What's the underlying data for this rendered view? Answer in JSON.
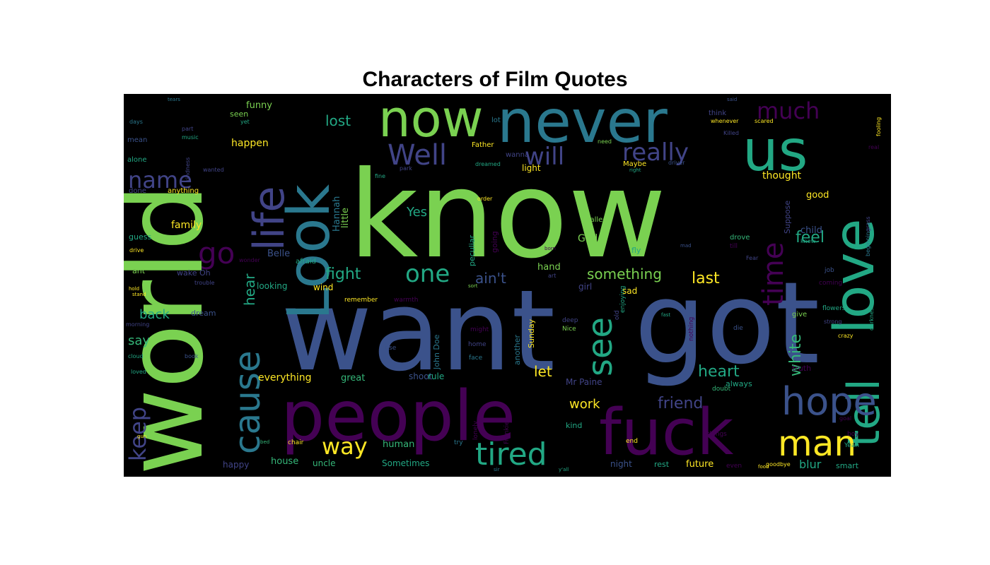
{
  "chart_data": {
    "type": "wordcloud",
    "title": "Characters of Film Quotes",
    "background": "#000000",
    "palette": [
      "#7ad151",
      "#2a788e",
      "#440154",
      "#3b528b",
      "#22a884",
      "#414487",
      "#fde725",
      "#35b779",
      "#1f9e89",
      "#482878"
    ],
    "words": [
      {
        "text": "know",
        "weight": 100
      },
      {
        "text": "want",
        "weight": 96
      },
      {
        "text": "got",
        "weight": 93
      },
      {
        "text": "world",
        "weight": 88
      },
      {
        "text": "people",
        "weight": 72
      },
      {
        "text": "never",
        "weight": 60
      },
      {
        "text": "fuck",
        "weight": 60
      },
      {
        "text": "Look",
        "weight": 58
      },
      {
        "text": "love",
        "weight": 56
      },
      {
        "text": "now",
        "weight": 54
      },
      {
        "text": "us",
        "weight": 52
      },
      {
        "text": "tell",
        "weight": 48
      },
      {
        "text": "life",
        "weight": 42
      },
      {
        "text": "hope",
        "weight": 40
      },
      {
        "text": "man",
        "weight": 40
      },
      {
        "text": "cause",
        "weight": 38
      },
      {
        "text": "tired",
        "weight": 36
      },
      {
        "text": "see",
        "weight": 34
      },
      {
        "text": "go",
        "weight": 32
      },
      {
        "text": "Well",
        "weight": 30
      },
      {
        "text": "time",
        "weight": 30
      },
      {
        "text": "will",
        "weight": 28
      },
      {
        "text": "really",
        "weight": 28
      },
      {
        "text": "much",
        "weight": 26
      },
      {
        "text": "name",
        "weight": 26
      },
      {
        "text": "one",
        "weight": 26
      },
      {
        "text": "way",
        "weight": 24
      },
      {
        "text": "keep",
        "weight": 22
      },
      {
        "text": "white",
        "weight": 20
      },
      {
        "text": "friend",
        "weight": 18
      },
      {
        "text": "heart",
        "weight": 18
      },
      {
        "text": "feel",
        "weight": 18
      },
      {
        "text": "fight",
        "weight": 16
      },
      {
        "text": "something",
        "weight": 16
      },
      {
        "text": "ain't",
        "weight": 16
      },
      {
        "text": "last",
        "weight": 16
      },
      {
        "text": "hear",
        "weight": 15
      },
      {
        "text": "lost",
        "weight": 15
      },
      {
        "text": "work",
        "weight": 14
      },
      {
        "text": "back",
        "weight": 14
      },
      {
        "text": "say",
        "weight": 14
      },
      {
        "text": "let",
        "weight": 14
      },
      {
        "text": "Yes",
        "weight": 13
      },
      {
        "text": "everything",
        "weight": 12
      },
      {
        "text": "blur",
        "weight": 12
      },
      {
        "text": "family",
        "weight": 11
      },
      {
        "text": "happen",
        "weight": 11
      },
      {
        "text": "funny",
        "weight": 10
      },
      {
        "text": "Hannah",
        "weight": 10
      },
      {
        "text": "little",
        "weight": 10
      },
      {
        "text": "thought",
        "weight": 10
      },
      {
        "text": "human",
        "weight": 10
      },
      {
        "text": "house",
        "weight": 10
      },
      {
        "text": "Belle",
        "weight": 9
      },
      {
        "text": "God",
        "weight": 9
      },
      {
        "text": "child",
        "weight": 9
      },
      {
        "text": "good",
        "weight": 9
      },
      {
        "text": "hand",
        "weight": 9
      },
      {
        "text": "future",
        "weight": 9
      },
      {
        "text": "Sometimes",
        "weight": 8
      },
      {
        "text": "great",
        "weight": 8
      },
      {
        "text": "light",
        "weight": 8
      },
      {
        "text": "happy",
        "weight": 8
      },
      {
        "text": "uncle",
        "weight": 8
      },
      {
        "text": "Mr Paine",
        "weight": 8
      },
      {
        "text": "looking",
        "weight": 8
      },
      {
        "text": "sad",
        "weight": 8
      },
      {
        "text": "girl",
        "weight": 8
      },
      {
        "text": "wind",
        "weight": 8
      },
      {
        "text": "night",
        "weight": 8
      },
      {
        "text": "rest",
        "weight": 8
      },
      {
        "text": "smart",
        "weight": 8
      },
      {
        "text": "kind",
        "weight": 7
      },
      {
        "text": "always",
        "weight": 7
      },
      {
        "text": "truth",
        "weight": 7
      },
      {
        "text": "shoot",
        "weight": 7
      },
      {
        "text": "rule",
        "weight": 7
      },
      {
        "text": "seen",
        "weight": 7
      },
      {
        "text": "dream",
        "weight": 7
      },
      {
        "text": "John Doe",
        "weight": 7
      },
      {
        "text": "Sunday",
        "weight": 7
      },
      {
        "text": "another",
        "weight": 7
      },
      {
        "text": "Suppose",
        "weight": 7
      },
      {
        "text": "fly",
        "weight": 7
      },
      {
        "text": "peculiar",
        "weight": 7
      },
      {
        "text": "going",
        "weight": 7
      },
      {
        "text": "wake Oh",
        "weight": 7
      },
      {
        "text": "Maybe",
        "weight": 6
      },
      {
        "text": "called",
        "weight": 6
      },
      {
        "text": "ant",
        "weight": 6
      },
      {
        "text": "guess",
        "weight": 6
      },
      {
        "text": "give",
        "weight": 6
      },
      {
        "text": "alone",
        "weight": 6
      },
      {
        "text": "mean",
        "weight": 6
      },
      {
        "text": "done",
        "weight": 6
      },
      {
        "text": "anything",
        "weight": 6
      },
      {
        "text": "Father",
        "weight": 6
      },
      {
        "text": "wanna",
        "weight": 6
      },
      {
        "text": "lot",
        "weight": 6
      },
      {
        "text": "think",
        "weight": 6
      },
      {
        "text": "afraid",
        "weight": 6
      },
      {
        "text": "drove",
        "weight": 6
      },
      {
        "text": "till",
        "weight": 6
      },
      {
        "text": "job",
        "weight": 6
      },
      {
        "text": "coming",
        "weight": 6
      },
      {
        "text": "flowers",
        "weight": 6
      },
      {
        "text": "deep",
        "weight": 6
      },
      {
        "text": "Nice",
        "weight": 6
      },
      {
        "text": "old",
        "weight": 6
      },
      {
        "text": "die",
        "weight": 6
      },
      {
        "text": "enjoying",
        "weight": 6
      },
      {
        "text": "nothing",
        "weight": 6
      },
      {
        "text": "face",
        "weight": 6
      },
      {
        "text": "home",
        "weight": 6
      },
      {
        "text": "might",
        "weight": 6
      },
      {
        "text": "lose",
        "weight": 6
      },
      {
        "text": "remember",
        "weight": 6
      },
      {
        "text": "warmth",
        "weight": 6
      },
      {
        "text": "boy",
        "weight": 6
      },
      {
        "text": "Yeah",
        "weight": 6
      },
      {
        "text": "end",
        "weight": 6
      },
      {
        "text": "try",
        "weight": 6
      },
      {
        "text": "chair",
        "weight": 6
      },
      {
        "text": "things",
        "weight": 6
      },
      {
        "text": "even",
        "weight": 6
      },
      {
        "text": "lonely",
        "weight": 6
      },
      {
        "text": "Frankie",
        "weight": 6
      },
      {
        "text": "doubt",
        "weight": 6
      },
      {
        "text": "book",
        "weight": 5
      },
      {
        "text": "cloud",
        "weight": 5
      },
      {
        "text": "loved",
        "weight": 5
      },
      {
        "text": "morning",
        "weight": 5
      },
      {
        "text": "trouble",
        "weight": 5
      },
      {
        "text": "drive",
        "weight": 5
      },
      {
        "text": "real",
        "weight": 5
      },
      {
        "text": "fooling",
        "weight": 5
      },
      {
        "text": "Killed",
        "weight": 5
      },
      {
        "text": "whenever",
        "weight": 5
      },
      {
        "text": "scared",
        "weight": 5
      },
      {
        "text": "driver",
        "weight": 5
      },
      {
        "text": "need",
        "weight": 5
      },
      {
        "text": "dreamed",
        "weight": 5
      },
      {
        "text": "park",
        "weight": 5
      },
      {
        "text": "order",
        "weight": 5
      },
      {
        "text": "days",
        "weight": 5
      },
      {
        "text": "part",
        "weight": 5
      },
      {
        "text": "music",
        "weight": 5
      },
      {
        "text": "yet",
        "weight": 5
      },
      {
        "text": "wanted",
        "weight": 5
      },
      {
        "text": "kindness",
        "weight": 5
      },
      {
        "text": "crazy",
        "weight": 5
      },
      {
        "text": "strong",
        "weight": 5
      },
      {
        "text": "darkness",
        "weight": 5
      },
      {
        "text": "beginning",
        "weight": 5
      },
      {
        "text": "grass",
        "weight": 5
      },
      {
        "text": "knew",
        "weight": 5
      },
      {
        "text": "Fear",
        "weight": 5
      },
      {
        "text": "goodbye",
        "weight": 5
      },
      {
        "text": "goal",
        "weight": 5
      },
      {
        "text": "wonder",
        "weight": 5
      },
      {
        "text": "right",
        "weight": 4
      },
      {
        "text": "fine",
        "weight": 4
      },
      {
        "text": "born",
        "weight": 4
      },
      {
        "text": "art",
        "weight": 4
      },
      {
        "text": "fast",
        "weight": 4
      },
      {
        "text": "tears",
        "weight": 4
      },
      {
        "text": "said",
        "weight": 4
      },
      {
        "text": "gun",
        "weight": 4
      },
      {
        "text": "sort",
        "weight": 4
      },
      {
        "text": "sir",
        "weight": 4
      },
      {
        "text": "y'all",
        "weight": 4
      },
      {
        "text": "food",
        "weight": 4
      },
      {
        "text": "mad",
        "weight": 4
      },
      {
        "text": "bed",
        "weight": 4
      },
      {
        "text": "stand",
        "weight": 4
      },
      {
        "text": "hold",
        "weight": 4
      }
    ]
  }
}
